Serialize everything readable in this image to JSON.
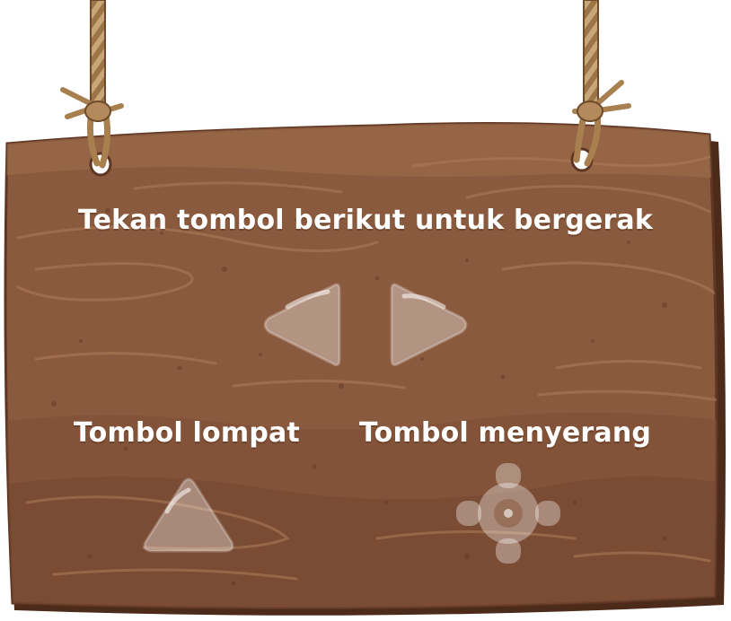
{
  "sign": {
    "instruction": "Tekan tombol berikut untuk bergerak",
    "jump_label": "Tombol lompat",
    "attack_label": "Tombol menyerang"
  },
  "icons": {
    "left": "arrow-left-icon",
    "right": "arrow-right-icon",
    "jump": "triangle-up-icon",
    "attack": "crosshair-icon"
  },
  "colors": {
    "wood": "#8a5a3e",
    "wood_dark": "#5e3623",
    "rope": "#b48a5c",
    "text": "#ffffff"
  }
}
